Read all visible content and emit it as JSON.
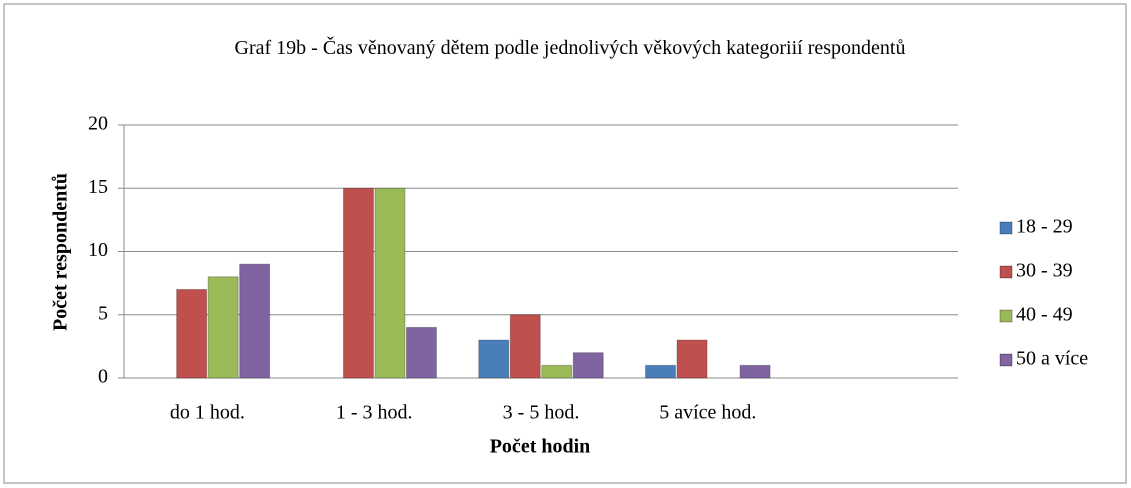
{
  "chart_data": {
    "type": "bar",
    "title": "Graf 19b - Čas věnovaný dětem podle jednolivých věkových kategoriií respondentů",
    "x_label": "Počet hodin",
    "y_label": "Počet respondentů",
    "categories": [
      "do 1 hod.",
      "1 - 3 hod.",
      "3 - 5 hod.",
      "5 avíce hod.",
      null
    ],
    "series": [
      {
        "name": "18 - 29",
        "color": "#4a7ebb",
        "values": [
          0,
          0,
          3,
          1,
          null
        ]
      },
      {
        "name": "30 - 39",
        "color": "#c0504d",
        "values": [
          7,
          15,
          5,
          3,
          null
        ]
      },
      {
        "name": "40 - 49",
        "color": "#9bbb59",
        "values": [
          8,
          15,
          1,
          0,
          null
        ]
      },
      {
        "name": "50 a více",
        "color": "#8064a2",
        "values": [
          9,
          4,
          2,
          1,
          null
        ]
      }
    ],
    "ylim": [
      0,
      20
    ],
    "yticks": [
      0,
      5,
      10,
      15,
      20
    ],
    "grid": true,
    "legend": "right"
  }
}
